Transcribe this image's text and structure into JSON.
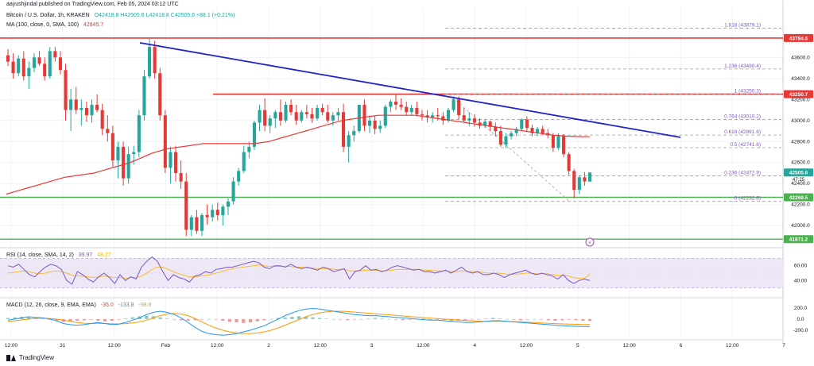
{
  "header": {
    "published": "aayushjindal published on TradingView.com, Feb 05, 2024 03:12 UTC",
    "symbol": "Bitcoin / U.S. Dollar, 1h, KRAKEN",
    "ohlc": "O42418.8  H42505.6  L42418.8  C42505.6  +88.1 (+0.21%)",
    "ma": "MA (100, close, 0, SMA, 100)",
    "ma_value": "42845.7",
    "rsi": "RSI (14, close, SMA, 14, 2)",
    "rsi_value": "39.97",
    "rsi_value2": "48.27",
    "macd": "MACD (12, 26, close, 9, EMA, EMA)",
    "macd_values": [
      "-35.0",
      "-133.8",
      "-98.8"
    ]
  },
  "footer": {
    "brand": "TradingView"
  },
  "colors": {
    "up": "#26a69a",
    "down": "#e53935",
    "ma": "#e53935",
    "trend": "#1e22c8",
    "support": "#4caf50",
    "fib": "#9e9e9e",
    "rsi_band": "#ede7f6",
    "rsi_line": "#7e57c2",
    "macd": "#2196f3",
    "signal": "#ff9800"
  },
  "chart_data": {
    "type": "candlestick",
    "yrange": [
      41820,
      43920
    ],
    "y_ticks": [
      "43600.0",
      "43400.0",
      "43200.0",
      "43000.0",
      "42800.0",
      "42600.0",
      "42400.0",
      "42200.0",
      "42000.0"
    ],
    "x_ticks": [
      "12:00",
      "31",
      "12:00",
      "Feb",
      "12:00",
      "2",
      "12:00",
      "3",
      "12:00",
      "4",
      "12:00",
      "5",
      "12:00",
      "6",
      "12:00",
      "7"
    ],
    "candles": [
      [
        43620,
        43680,
        43520,
        43560
      ],
      [
        43560,
        43640,
        43400,
        43450
      ],
      [
        43450,
        43620,
        43420,
        43590
      ],
      [
        43590,
        43660,
        43380,
        43420
      ],
      [
        43420,
        43560,
        43300,
        43500
      ],
      [
        43500,
        43640,
        43460,
        43600
      ],
      [
        43600,
        43660,
        43520,
        43540
      ],
      [
        43540,
        43600,
        43380,
        43420
      ],
      [
        43420,
        43700,
        43400,
        43660
      ],
      [
        43660,
        43700,
        43560,
        43600
      ],
      [
        43600,
        43660,
        43440,
        43480
      ],
      [
        43480,
        43540,
        43000,
        43100
      ],
      [
        43100,
        43300,
        42900,
        43200
      ],
      [
        43200,
        43320,
        43060,
        43100
      ],
      [
        43100,
        43200,
        42950,
        43120
      ],
      [
        43120,
        43180,
        42990,
        43050
      ],
      [
        43050,
        43200,
        42980,
        43150
      ],
      [
        43150,
        43250,
        43080,
        43100
      ],
      [
        43100,
        43160,
        42860,
        42920
      ],
      [
        42920,
        43050,
        42800,
        42880
      ],
      [
        42880,
        42950,
        42560,
        42620
      ],
      [
        42620,
        42800,
        42450,
        42750
      ],
      [
        42750,
        42800,
        42380,
        42450
      ],
      [
        42450,
        42750,
        42400,
        42680
      ],
      [
        42680,
        42760,
        42580,
        42700
      ],
      [
        42700,
        43100,
        42650,
        43050
      ],
      [
        43050,
        43480,
        43000,
        43420
      ],
      [
        43420,
        43780,
        43400,
        43700
      ],
      [
        43700,
        43760,
        43400,
        43450
      ],
      [
        43450,
        43500,
        43000,
        43050
      ],
      [
        43050,
        43100,
        42500,
        42550
      ],
      [
        42550,
        42750,
        42400,
        42700
      ],
      [
        42700,
        42760,
        42420,
        42500
      ],
      [
        42500,
        42620,
        42350,
        42420
      ],
      [
        42420,
        42500,
        41900,
        41960
      ],
      [
        41960,
        42100,
        41900,
        42080
      ],
      [
        42080,
        42150,
        41920,
        41950
      ],
      [
        41950,
        42120,
        41900,
        42100
      ],
      [
        42100,
        42200,
        42010,
        42080
      ],
      [
        42080,
        42200,
        42040,
        42150
      ],
      [
        42150,
        42220,
        42050,
        42100
      ],
      [
        42100,
        42200,
        42000,
        42180
      ],
      [
        42180,
        42260,
        42100,
        42230
      ],
      [
        42230,
        42460,
        42200,
        42420
      ],
      [
        42420,
        42550,
        42380,
        42520
      ],
      [
        42520,
        42760,
        42500,
        42700
      ],
      [
        42700,
        42800,
        42640,
        42750
      ],
      [
        42750,
        43000,
        42720,
        42980
      ],
      [
        42980,
        43150,
        42900,
        43100
      ],
      [
        43100,
        43210,
        42900,
        42950
      ],
      [
        42950,
        43050,
        42880,
        43020
      ],
      [
        43020,
        43100,
        42930,
        43080
      ],
      [
        43080,
        43200,
        42950,
        43000
      ],
      [
        43000,
        43180,
        42980,
        43150
      ],
      [
        43150,
        43200,
        43050,
        43080
      ],
      [
        43080,
        43150,
        42960,
        43000
      ],
      [
        43000,
        43100,
        42980,
        43080
      ],
      [
        43080,
        43150,
        43020,
        43060
      ],
      [
        43060,
        43120,
        42980,
        43020
      ],
      [
        43020,
        43150,
        43000,
        43120
      ],
      [
        43120,
        43160,
        43050,
        43080
      ],
      [
        43080,
        43150,
        42980,
        43000
      ],
      [
        43000,
        43080,
        42950,
        43050
      ],
      [
        43050,
        43120,
        43000,
        43080
      ],
      [
        43080,
        43160,
        42700,
        42750
      ],
      [
        42750,
        42900,
        42600,
        42860
      ],
      [
        42860,
        42950,
        42800,
        42900
      ],
      [
        42900,
        43150,
        42880,
        43150
      ],
      [
        43150,
        43200,
        42900,
        42950
      ],
      [
        42950,
        43050,
        42880,
        43000
      ],
      [
        43000,
        43050,
        42870,
        42920
      ],
      [
        42920,
        43000,
        42880,
        42950
      ],
      [
        42950,
        43150,
        42930,
        43130
      ],
      [
        43130,
        43200,
        43080,
        43180
      ],
      [
        43180,
        43250,
        43100,
        43150
      ],
      [
        43150,
        43210,
        43100,
        43130
      ],
      [
        43130,
        43180,
        43050,
        43080
      ],
      [
        43080,
        43150,
        43050,
        43120
      ],
      [
        43120,
        43180,
        43040,
        43060
      ],
      [
        43060,
        43100,
        43000,
        43050
      ],
      [
        43050,
        43100,
        42980,
        43030
      ],
      [
        43030,
        43080,
        42980,
        43050
      ],
      [
        43050,
        43120,
        43000,
        43040
      ],
      [
        43040,
        43080,
        42960,
        43000
      ],
      [
        43000,
        43120,
        42980,
        43100
      ],
      [
        43100,
        43230,
        43080,
        43200
      ],
      [
        43200,
        43230,
        43010,
        43050
      ],
      [
        43050,
        43120,
        42980,
        43000
      ],
      [
        43000,
        43080,
        42950,
        43020
      ],
      [
        43020,
        43060,
        42940,
        42980
      ],
      [
        42980,
        43020,
        42920,
        42950
      ],
      [
        42950,
        43010,
        42930,
        42990
      ],
      [
        42990,
        43000,
        42900,
        42940
      ],
      [
        42940,
        42980,
        42850,
        42900
      ],
      [
        42900,
        42950,
        42750,
        42770
      ],
      [
        42770,
        42880,
        42740,
        42850
      ],
      [
        42850,
        42900,
        42820,
        42880
      ],
      [
        42880,
        42940,
        42850,
        42920
      ],
      [
        42920,
        43020,
        42900,
        43010
      ],
      [
        43010,
        43040,
        42900,
        42930
      ],
      [
        42930,
        42960,
        42850,
        42880
      ],
      [
        42880,
        42940,
        42850,
        42920
      ],
      [
        42920,
        42950,
        42860,
        42880
      ],
      [
        42880,
        42920,
        42830,
        42860
      ],
      [
        42860,
        42880,
        42700,
        42740
      ],
      [
        42740,
        42880,
        42720,
        42850
      ],
      [
        42850,
        42870,
        42650,
        42680
      ],
      [
        42680,
        42700,
        42480,
        42520
      ],
      [
        42520,
        42540,
        42260,
        42340
      ],
      [
        42340,
        42480,
        42300,
        42460
      ],
      [
        42460,
        42510,
        42380,
        42420
      ],
      [
        42418.8,
        42505.6,
        42418.8,
        42505.6
      ]
    ],
    "ma_values": [
      42300,
      42320,
      42340,
      42360,
      42380,
      42400,
      42420,
      42440,
      42460,
      42470,
      42480,
      42490,
      42500,
      42520,
      42540,
      42560,
      42580,
      42600,
      42630,
      42660,
      42690,
      42710,
      42730,
      42740,
      42750,
      42760,
      42770,
      42780,
      42780,
      42780,
      42780,
      42780,
      42780,
      42780,
      42780,
      42790,
      42800,
      42820,
      42840,
      42860,
      42880,
      42900,
      42920,
      42940,
      42960,
      42980,
      43000,
      43010,
      43020,
      43030,
      43040,
      43050,
      43050,
      43050,
      43050,
      43050,
      43050,
      43040,
      43030,
      43020,
      43010,
      43000,
      42990,
      42980,
      42970,
      42960,
      42950,
      42940,
      42930,
      42920,
      42910,
      42900,
      42890,
      42880,
      42870,
      42860,
      42855,
      42850,
      42848,
      42846,
      42845.7
    ],
    "trendline": [
      [
        43740,
        42840
      ]
    ],
    "resistance": [
      43784.6,
      43250.7
    ],
    "support": [
      42269.5,
      41871.2
    ],
    "fib_levels": [
      {
        "ratio": "1.618",
        "price": 43879.1
      },
      {
        "ratio": "1.236",
        "price": 43490.4
      },
      {
        "ratio": "1",
        "price": 43250.3
      },
      {
        "ratio": "0.764",
        "price": 43010.2
      },
      {
        "ratio": "0.618",
        "price": 42861.6
      },
      {
        "ratio": "0.5",
        "price": 42741.6
      },
      {
        "ratio": "0.236",
        "price": 42472.9
      },
      {
        "ratio": "0",
        "price": 42232.8
      }
    ],
    "price_labels": [
      {
        "price": 43784.6,
        "text": "43784.6",
        "bg": "#e53935"
      },
      {
        "price": 43250.7,
        "text": "43250.7",
        "bg": "#e53935"
      },
      {
        "price": 42505.6,
        "text": "42505.6",
        "bg": "#26a69a"
      },
      {
        "price": 42269.5,
        "text": "42269.5",
        "bg": "#4caf50"
      },
      {
        "price": 41871.2,
        "text": "41871.2",
        "bg": "#4caf50"
      }
    ],
    "countdown": "47:25",
    "rsi": {
      "range": [
        20,
        80
      ],
      "ticks": [
        "60.00",
        "40.00"
      ],
      "values": [
        60,
        58,
        62,
        55,
        48,
        45,
        52,
        58,
        62,
        60,
        55,
        40,
        35,
        52,
        48,
        42,
        38,
        45,
        50,
        44,
        36,
        48,
        40,
        45,
        42,
        58,
        66,
        72,
        66,
        52,
        40,
        48,
        44,
        42,
        38,
        46,
        48,
        52,
        50,
        55,
        56,
        58,
        58,
        60,
        62,
        64,
        66,
        64,
        58,
        56,
        60,
        60,
        58,
        62,
        58,
        56,
        58,
        56,
        54,
        58,
        56,
        52,
        54,
        56,
        42,
        52,
        54,
        60,
        54,
        55,
        52,
        54,
        58,
        60,
        58,
        56,
        54,
        55,
        52,
        52,
        50,
        52,
        54,
        50,
        54,
        58,
        52,
        50,
        52,
        48,
        48,
        50,
        48,
        44,
        48,
        50,
        52,
        54,
        50,
        48,
        50,
        48,
        46,
        42,
        48,
        40,
        36,
        40,
        42,
        39.97
      ],
      "signal": [
        50,
        51,
        52,
        53,
        52,
        50,
        49,
        50,
        52,
        53,
        52,
        50,
        47,
        46,
        46,
        45,
        44,
        45,
        46,
        45,
        44,
        44,
        43,
        44,
        44,
        46,
        50,
        55,
        58,
        58,
        55,
        52,
        49,
        47,
        45,
        45,
        46,
        47,
        48,
        50,
        52,
        54,
        56,
        57,
        58,
        59,
        60,
        61,
        60,
        59,
        59,
        59,
        59,
        59,
        58,
        58,
        57,
        57,
        56,
        56,
        56,
        55,
        55,
        55,
        53,
        53,
        53,
        54,
        54,
        54,
        53,
        53,
        54,
        55,
        55,
        55,
        55,
        55,
        54,
        54,
        53,
        53,
        53,
        52,
        52,
        53,
        53,
        52,
        52,
        51,
        50,
        50,
        50,
        49,
        48,
        48,
        49,
        50,
        50,
        49,
        49,
        49,
        48,
        47,
        47,
        46,
        44,
        43,
        43,
        48.27
      ]
    },
    "macd": {
      "range": [
        -330,
        340
      ],
      "ticks": [
        "200.0",
        "0.0",
        "-200.0"
      ],
      "histogram": [
        20,
        30,
        40,
        30,
        20,
        10,
        -10,
        -30,
        -50,
        -40,
        -30,
        -20,
        -10,
        -30,
        -40,
        -30,
        -10,
        10,
        30,
        50,
        60,
        50,
        30,
        10,
        -10,
        -20,
        -30,
        -20,
        -10,
        0,
        -10,
        -30,
        -50,
        -60,
        -70,
        -60,
        -40,
        -20,
        0,
        20,
        30,
        40,
        50,
        40,
        30,
        20,
        10,
        0,
        -10,
        -20,
        -10,
        0,
        10,
        20,
        10,
        0,
        -10,
        -20,
        -10,
        0,
        10,
        0,
        -10,
        -20,
        -40,
        -30,
        -20,
        -10,
        0,
        10,
        20,
        10,
        0,
        -10,
        -20,
        -10,
        0,
        -10,
        -20,
        -30,
        -20,
        -10,
        -20,
        -30,
        -35
      ],
      "macd_line": [
        -20,
        0,
        20,
        40,
        30,
        20,
        0,
        -30,
        -80,
        -100,
        -110,
        -100,
        -80,
        -60,
        -80,
        -100,
        -90,
        -60,
        -20,
        20,
        80,
        120,
        140,
        120,
        80,
        20,
        -60,
        -150,
        -220,
        -260,
        -280,
        -290,
        -280,
        -260,
        -230,
        -200,
        -160,
        -120,
        -60,
        0,
        60,
        110,
        150,
        180,
        190,
        180,
        160,
        140,
        120,
        100,
        80,
        70,
        60,
        60,
        50,
        40,
        30,
        20,
        10,
        0,
        -10,
        -20,
        -20,
        -30,
        -40,
        -50,
        -60,
        -60,
        -50,
        -40,
        -30,
        -30,
        -40,
        -50,
        -60,
        -70,
        -80,
        -90,
        -100,
        -110,
        -120,
        -125,
        -130,
        -133,
        -133.8
      ],
      "signal_line": [
        -40,
        -30,
        -15,
        0,
        10,
        15,
        10,
        0,
        -20,
        -40,
        -60,
        -75,
        -80,
        -78,
        -80,
        -85,
        -88,
        -82,
        -70,
        -50,
        -20,
        20,
        60,
        90,
        100,
        90,
        60,
        10,
        -50,
        -110,
        -160,
        -200,
        -230,
        -250,
        -260,
        -260,
        -250,
        -230,
        -200,
        -160,
        -110,
        -60,
        -10,
        40,
        80,
        110,
        130,
        140,
        140,
        135,
        125,
        115,
        105,
        95,
        85,
        75,
        65,
        55,
        45,
        35,
        25,
        15,
        8,
        0,
        -8,
        -16,
        -25,
        -32,
        -38,
        -40,
        -40,
        -40,
        -42,
        -46,
        -52,
        -58,
        -64,
        -70,
        -76,
        -82,
        -88,
        -92,
        -95,
        -97,
        -98.8
      ]
    }
  }
}
